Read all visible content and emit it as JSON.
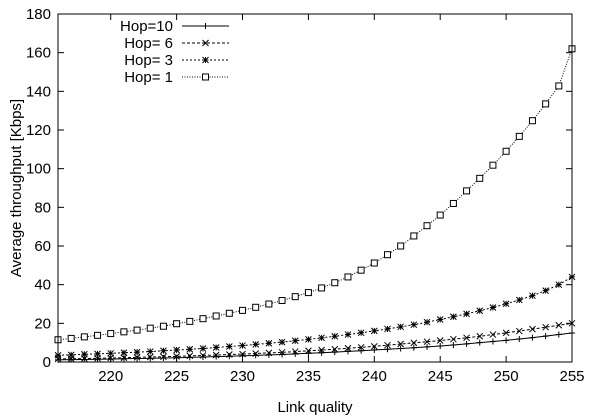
{
  "chart_data": {
    "type": "line",
    "title": "",
    "xlabel": "Link quality",
    "ylabel": "Average throughput [Kbps]",
    "xlim": [
      216,
      255
    ],
    "ylim": [
      0,
      180
    ],
    "x_ticks": [
      220,
      225,
      230,
      235,
      240,
      245,
      250,
      255
    ],
    "y_ticks": [
      0,
      20,
      40,
      60,
      80,
      100,
      120,
      140,
      160,
      180
    ],
    "grid": false,
    "legend_position": "top-left",
    "x": [
      216,
      217,
      218,
      219,
      220,
      221,
      222,
      223,
      224,
      225,
      226,
      227,
      228,
      229,
      230,
      231,
      232,
      233,
      234,
      235,
      236,
      237,
      238,
      239,
      240,
      241,
      242,
      243,
      244,
      245,
      246,
      247,
      248,
      249,
      250,
      251,
      252,
      253,
      254,
      255
    ],
    "series": [
      {
        "name": "Hop=10",
        "marker": "plus",
        "line_style": "solid",
        "values": [
          1.1,
          1.2,
          1.3,
          1.4,
          1.5,
          1.7,
          1.8,
          1.9,
          2.1,
          2.2,
          2.4,
          2.6,
          2.8,
          3.0,
          3.2,
          3.4,
          3.7,
          3.9,
          4.2,
          4.5,
          4.8,
          5.1,
          5.5,
          5.8,
          6.2,
          6.6,
          7.0,
          7.4,
          7.8,
          8.3,
          8.8,
          9.4,
          10.0,
          10.6,
          11.2,
          11.9,
          12.6,
          13.4,
          14.2,
          15.0
        ]
      },
      {
        "name": "Hop= 6",
        "marker": "x",
        "line_style": "dashed",
        "values": [
          1.6,
          1.7,
          1.8,
          1.9,
          2.1,
          2.2,
          2.4,
          2.6,
          2.7,
          2.9,
          3.2,
          3.4,
          3.6,
          3.9,
          4.1,
          4.4,
          4.7,
          5.0,
          5.4,
          5.8,
          6.2,
          6.6,
          7.1,
          7.6,
          8.1,
          8.7,
          9.3,
          9.9,
          10.5,
          11.1,
          11.8,
          12.5,
          13.3,
          14.2,
          15.1,
          16.0,
          17.0,
          18.0,
          19.0,
          20.0
        ]
      },
      {
        "name": "Hop= 3",
        "marker": "star",
        "line_style": "dotted",
        "values": [
          3.5,
          3.7,
          4.0,
          4.2,
          4.5,
          4.8,
          5.1,
          5.4,
          5.8,
          6.2,
          6.6,
          7.0,
          7.5,
          8.0,
          8.5,
          9.1,
          9.7,
          10.3,
          11.0,
          11.7,
          12.5,
          13.3,
          14.2,
          15.1,
          16.1,
          17.1,
          18.2,
          19.3,
          20.6,
          22.0,
          23.4,
          24.9,
          26.5,
          28.2,
          30.1,
          32.1,
          34.3,
          36.9,
          40.0,
          44.0
        ]
      },
      {
        "name": "Hop= 1",
        "marker": "square",
        "line_style": "dotted-fine",
        "values": [
          11.5,
          12.2,
          13.0,
          13.8,
          14.7,
          15.6,
          16.5,
          17.5,
          18.5,
          19.8,
          21.0,
          22.4,
          23.8,
          25.2,
          26.7,
          28.3,
          30.0,
          31.8,
          33.8,
          35.9,
          38.3,
          41.0,
          44.0,
          47.5,
          51.2,
          55.5,
          60.0,
          65.2,
          70.5,
          76.0,
          82.0,
          88.5,
          95.0,
          101.8,
          109.0,
          116.7,
          124.8,
          133.5,
          142.8,
          162.0
        ]
      }
    ]
  }
}
